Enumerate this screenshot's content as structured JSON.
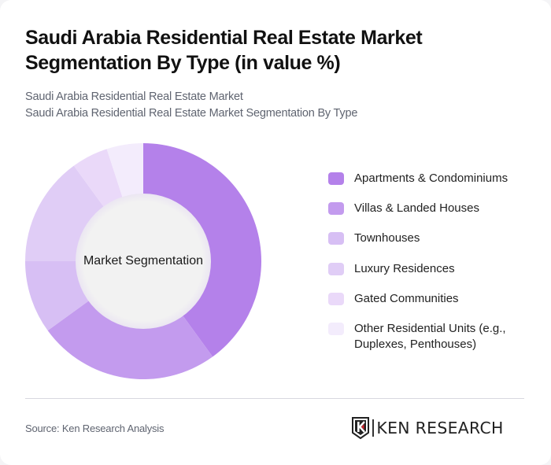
{
  "title": "Saudi Arabia Residential Real Estate Market Segmentation By Type (in value %)",
  "subtitle": {
    "line1": "Saudi Arabia Residential Real Estate Market",
    "line2": "Saudi Arabia Residential Real Estate Market Segmentation By Type"
  },
  "center_label": "Market Segmentation",
  "legend": [
    {
      "label": "Apartments & Condominiums",
      "color": "#B481EA"
    },
    {
      "label": "Villas & Landed Houses",
      "color": "#C39BEE"
    },
    {
      "label": "Townhouses",
      "color": "#D7BFF4"
    },
    {
      "label": "Luxury Residences",
      "color": "#E0CDF6"
    },
    {
      "label": "Gated Communities",
      "color": "#EAD9F9"
    },
    {
      "label": "Other Residential Units (e.g., Duplexes, Penthouses)",
      "color": "#F3ECFC"
    }
  ],
  "footer": {
    "source": "Source: Ken Research Analysis",
    "logo_text": "KEN RESEARCH",
    "logo_accent": "#D7262E"
  },
  "chart_data": {
    "type": "pie",
    "subtype": "donut",
    "title": "Saudi Arabia Residential Real Estate Market Segmentation By Type (in value %)",
    "center_label": "Market Segmentation",
    "categories": [
      "Apartments & Condominiums",
      "Villas & Landed Houses",
      "Townhouses",
      "Luxury Residences",
      "Gated Communities",
      "Other Residential Units (e.g., Duplexes, Penthouses)"
    ],
    "values": [
      40,
      25,
      10,
      15,
      5,
      5
    ],
    "colors": [
      "#B481EA",
      "#C39BEE",
      "#D7BFF4",
      "#E0CDF6",
      "#EAD9F9",
      "#F3ECFC"
    ],
    "unit": "%",
    "start_angle": "12 o'clock, clockwise",
    "legend_position": "right"
  }
}
